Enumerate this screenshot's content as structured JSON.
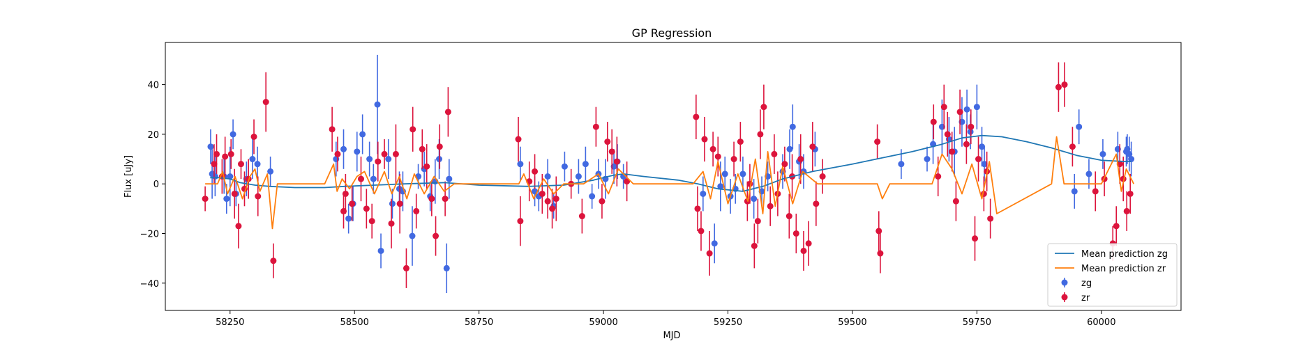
{
  "chart_data": {
    "type": "scatter",
    "title": "GP Regression",
    "xlabel": "MJD",
    "ylabel": "Flux [uJy]",
    "xlim": [
      58120,
      60160
    ],
    "ylim": [
      -51,
      57
    ],
    "xticks": [
      58250,
      58500,
      58750,
      59000,
      59250,
      59500,
      59750,
      60000
    ],
    "yticks": [
      -40,
      -20,
      0,
      20,
      40
    ],
    "grid": false,
    "legend": {
      "position": "lower-right",
      "entries": [
        "Mean prediction zg",
        "Mean prediction zr",
        "zg",
        "zr"
      ]
    },
    "colors": {
      "zg": "#4169e1",
      "zr": "#dc143c",
      "mean_zg": "#1f77b4",
      "mean_zr": "#ff7f0e"
    },
    "series": [
      {
        "name": "Mean prediction zg",
        "kind": "line",
        "color": "#1f77b4",
        "x": [
          58210,
          58230,
          58250,
          58270,
          58300,
          58330,
          58380,
          58440,
          58480,
          58540,
          58600,
          58680,
          58750,
          58850,
          58920,
          58980,
          59020,
          59040,
          59080,
          59150,
          59190,
          59230,
          59280,
          59320,
          59360,
          59420,
          59500,
          59560,
          59620,
          59680,
          59720,
          59760,
          59800,
          59850,
          59900,
          59950,
          60000,
          60050,
          60060
        ],
        "y": [
          2.5,
          2.5,
          2.0,
          0.5,
          -0.5,
          -1.0,
          -1.5,
          -1.5,
          -1.0,
          -0.5,
          0.0,
          0.5,
          -0.5,
          -1.0,
          -0.5,
          1.5,
          3.5,
          4.0,
          3.0,
          1.5,
          0.0,
          -2.0,
          -3.0,
          -1.0,
          2.0,
          5.0,
          8.0,
          10.5,
          13.0,
          16.0,
          18.5,
          19.5,
          19.0,
          17.0,
          14.5,
          11.5,
          9.5,
          9.0,
          9.0
        ]
      },
      {
        "name": "Mean prediction zr",
        "kind": "line",
        "color": "#ff7f0e",
        "x": [
          58200,
          58225,
          58235,
          58245,
          58260,
          58275,
          58290,
          58300,
          58310,
          58325,
          58335,
          58345,
          58440,
          58458,
          58465,
          58475,
          58490,
          58505,
          58520,
          58540,
          58560,
          58575,
          58590,
          58605,
          58620,
          58640,
          58660,
          58680,
          58700,
          58830,
          58840,
          58860,
          58880,
          58900,
          58920,
          58960,
          58990,
          59010,
          59030,
          59060,
          59180,
          59200,
          59215,
          59230,
          59250,
          59270,
          59290,
          59305,
          59320,
          59330,
          59345,
          59360,
          59380,
          59400,
          59430,
          59550,
          59560,
          59575,
          59660,
          59670,
          59680,
          59700,
          59720,
          59740,
          59760,
          59775,
          59790,
          59900,
          59910,
          59925,
          59950,
          60000,
          60030,
          60040,
          60050,
          60065
        ],
        "y": [
          0,
          0,
          5,
          -4,
          3,
          -6,
          3,
          6,
          -3,
          4,
          -18,
          0,
          0,
          8,
          -3,
          2,
          -2,
          3,
          5,
          -4,
          5,
          -4,
          3,
          -6,
          4,
          -4,
          3,
          -3,
          0,
          0,
          4,
          -6,
          2,
          -4,
          0,
          0,
          4,
          -4,
          6,
          0,
          0,
          5,
          -6,
          9,
          -8,
          4,
          -7,
          10,
          -12,
          13,
          -9,
          7,
          -8,
          5,
          0,
          0,
          -6,
          0,
          0,
          6,
          12,
          6,
          -4,
          8,
          -6,
          9,
          -12,
          0,
          19,
          0,
          0,
          0,
          12,
          -3,
          6,
          0
        ]
      },
      {
        "name": "zg",
        "kind": "errorbar",
        "color": "#4169e1",
        "x": [
          58211,
          58214,
          58220,
          58238,
          58243,
          58250,
          58256,
          58262,
          58283,
          58295,
          58305,
          58331,
          58463,
          58478,
          58488,
          58497,
          58505,
          58516,
          58530,
          58538,
          58546,
          58553,
          58568,
          58576,
          58590,
          58597,
          58616,
          58628,
          58640,
          58652,
          58662,
          58670,
          58685,
          58690,
          58833,
          58862,
          58870,
          58888,
          58900,
          58922,
          58950,
          58964,
          58977,
          58990,
          59004,
          59021,
          59028,
          59040,
          59200,
          59223,
          59235,
          59244,
          59255,
          59265,
          59280,
          59302,
          59318,
          59330,
          59360,
          59374,
          59380,
          59393,
          59402,
          59425,
          59598,
          59650,
          59662,
          59680,
          59694,
          59705,
          59720,
          59730,
          59737,
          59750,
          59760,
          59765,
          59946,
          59955,
          59975,
          60003,
          60033,
          60050,
          60052,
          60056,
          60060
        ],
        "y": [
          15,
          4,
          3,
          3,
          -6,
          3,
          20,
          -4,
          2,
          10,
          8,
          5,
          10,
          14,
          -14,
          -8,
          13,
          20,
          10,
          2,
          32,
          -27,
          10,
          -8,
          -2,
          -3,
          -21,
          3,
          6,
          -5,
          1,
          10,
          -34,
          2,
          8,
          -3,
          -5,
          3,
          -9,
          7,
          3,
          8,
          -5,
          4,
          2,
          7,
          9,
          3,
          -4,
          -24,
          -1,
          4,
          -5,
          -2,
          4,
          -6,
          -3,
          3,
          5,
          14,
          23,
          9,
          5,
          14,
          8,
          10,
          16,
          23,
          18,
          13,
          25,
          30,
          21,
          31,
          15,
          8,
          -3,
          23,
          4,
          12,
          14,
          13,
          14,
          12,
          10
        ],
        "err": [
          7,
          10,
          8,
          7,
          6,
          12,
          6,
          5,
          7,
          8,
          7,
          6,
          7,
          8,
          6,
          7,
          8,
          8,
          7,
          6,
          20,
          7,
          8,
          6,
          7,
          8,
          12,
          5,
          7,
          6,
          9,
          8,
          10,
          8,
          7,
          6,
          6,
          7,
          5,
          6,
          7,
          7,
          5,
          6,
          8,
          7,
          7,
          5,
          7,
          8,
          10,
          7,
          7,
          6,
          7,
          8,
          6,
          6,
          7,
          8,
          9,
          7,
          7,
          7,
          6,
          5,
          8,
          11,
          9,
          10,
          10,
          8,
          7,
          9,
          8,
          7,
          7,
          7,
          6,
          6,
          7,
          6,
          6,
          7,
          7
        ]
      },
      {
        "name": "zr",
        "kind": "errorbar",
        "color": "#dc143c",
        "x": [
          58200,
          58218,
          58223,
          58234,
          58240,
          58252,
          58259,
          58267,
          58272,
          58279,
          58287,
          58298,
          58306,
          58322,
          58337,
          58455,
          58466,
          58478,
          58482,
          58495,
          58513,
          58524,
          58535,
          58547,
          58560,
          58574,
          58583,
          58591,
          58604,
          58617,
          58624,
          58636,
          58645,
          58655,
          58663,
          58671,
          58682,
          58688,
          58829,
          58833,
          58851,
          58862,
          58877,
          58888,
          58897,
          58905,
          58935,
          58957,
          58985,
          58997,
          59008,
          59017,
          59027,
          59047,
          59186,
          59189,
          59196,
          59203,
          59213,
          59220,
          59230,
          59262,
          59275,
          59289,
          59294,
          59303,
          59310,
          59315,
          59322,
          59335,
          59343,
          59350,
          59364,
          59373,
          59379,
          59387,
          59396,
          59402,
          59412,
          59420,
          59427,
          59440,
          59550,
          59553,
          59556,
          59663,
          59672,
          59684,
          59691,
          59700,
          59708,
          59716,
          59729,
          59738,
          59746,
          59753,
          59764,
          59770,
          59777,
          59914,
          59926,
          59942,
          59988,
          60006,
          60023,
          60030,
          60037,
          60044,
          60051,
          60058
        ],
        "y": [
          -6,
          8,
          12,
          3,
          11,
          12,
          -4,
          -17,
          8,
          -2,
          2,
          19,
          -5,
          33,
          -31,
          22,
          12,
          -11,
          -4,
          -8,
          2,
          -10,
          -15,
          9,
          12,
          -16,
          12,
          -8,
          -34,
          22,
          -11,
          14,
          7,
          -6,
          -21,
          15,
          -6,
          29,
          18,
          -15,
          1,
          5,
          -4,
          -7,
          -10,
          -6,
          0,
          -13,
          23,
          -7,
          17,
          13,
          9,
          1,
          27,
          -10,
          -19,
          18,
          -28,
          14,
          11,
          10,
          17,
          -7,
          0,
          -25,
          -15,
          20,
          31,
          -9,
          12,
          -4,
          8,
          -13,
          3,
          -20,
          10,
          -27,
          -24,
          15,
          -8,
          3,
          17,
          -19,
          -28,
          25,
          3,
          31,
          20,
          13,
          -7,
          29,
          16,
          23,
          -22,
          10,
          -4,
          5,
          -14,
          39,
          40,
          15,
          -3,
          2,
          -24,
          -17,
          8,
          2,
          -11,
          -4
        ],
        "err": [
          5,
          8,
          8,
          7,
          8,
          6,
          10,
          9,
          6,
          7,
          8,
          7,
          8,
          12,
          7,
          9,
          7,
          7,
          8,
          7,
          9,
          8,
          7,
          8,
          6,
          10,
          12,
          12,
          8,
          9,
          7,
          8,
          9,
          7,
          8,
          9,
          7,
          10,
          9,
          10,
          8,
          7,
          8,
          7,
          8,
          9,
          6,
          7,
          8,
          7,
          8,
          9,
          10,
          8,
          9,
          9,
          8,
          9,
          9,
          7,
          8,
          7,
          8,
          8,
          8,
          9,
          9,
          10,
          9,
          8,
          8,
          9,
          7,
          9,
          9,
          8,
          10,
          8,
          9,
          10,
          9,
          7,
          7,
          8,
          8,
          7,
          8,
          9,
          9,
          8,
          8,
          9,
          8,
          7,
          9,
          9,
          7,
          8,
          8,
          10,
          9,
          8,
          8,
          7,
          7,
          8,
          8,
          9,
          8,
          8
        ]
      }
    ]
  }
}
